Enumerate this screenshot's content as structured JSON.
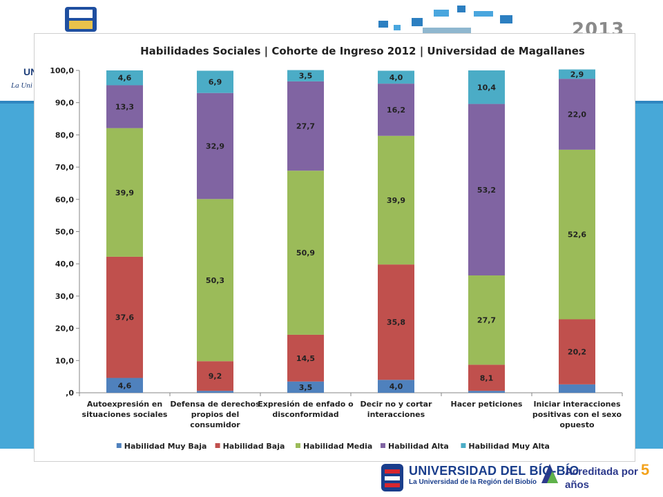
{
  "slide": {
    "year": "2013",
    "header_university": "UNI",
    "header_university_sub": "La Uni",
    "footer_university": "UNIVERSIDAD DEL BÍO-BÍO",
    "footer_university_sub": "La Universidad de la Región del Biobío",
    "footer_accreditation": "Acreditada por",
    "footer_accreditation_years": "5",
    "footer_accreditation_unit": "años",
    "colors": {
      "blue_band": "#47a8d8",
      "frame_border": "#cfcfcf"
    }
  },
  "chart_data": {
    "type": "bar",
    "stacked": true,
    "title": "Habilidades Sociales | Cohorte de Ingreso 2012 | Universidad de Magallanes",
    "xlabel": "",
    "ylabel": "",
    "ylim": [
      0,
      100
    ],
    "y_ticks": [
      0,
      10,
      20,
      30,
      40,
      50,
      60,
      70,
      80,
      90,
      100
    ],
    "y_tick_labels": [
      ",0",
      "10,0",
      "20,0",
      "30,0",
      "40,0",
      "50,0",
      "60,0",
      "70,0",
      "80,0",
      "90,0",
      "100,0"
    ],
    "grid": false,
    "legend_position": "bottom",
    "categories": [
      [
        "Autoexpresión en",
        "situaciones sociales"
      ],
      [
        "Defensa de derechos",
        "propios del",
        "consumidor"
      ],
      [
        "Expresión de enfado o",
        "disconformidad"
      ],
      [
        "Decir no y cortar",
        "interacciones"
      ],
      [
        "Hacer peticiones"
      ],
      [
        "Iniciar interacciones",
        "positivas con el sexo",
        "opuesto"
      ]
    ],
    "series": [
      {
        "name": "Habilidad Muy Baja",
        "color": "#4f81bd",
        "values": [
          4.6,
          0.6,
          3.5,
          4.0,
          0.6,
          2.6
        ],
        "labels": [
          "4,6",
          "",
          "3,5",
          "4,0",
          "",
          ""
        ]
      },
      {
        "name": "Habilidad Baja",
        "color": "#c0504d",
        "values": [
          37.6,
          9.2,
          14.5,
          35.8,
          8.1,
          20.2
        ],
        "labels": [
          "37,6",
          "9,2",
          "14,5",
          "35,8",
          "8,1",
          "20,2"
        ]
      },
      {
        "name": "Habilidad Media",
        "color": "#9bbb59",
        "values": [
          39.9,
          50.3,
          50.9,
          39.9,
          27.7,
          52.6
        ],
        "labels": [
          "39,9",
          "50,3",
          "50,9",
          "39,9",
          "27,7",
          "52,6"
        ]
      },
      {
        "name": "Habilidad Alta",
        "color": "#8064a2",
        "values": [
          13.3,
          32.9,
          27.7,
          16.2,
          53.2,
          22.0
        ],
        "labels": [
          "13,3",
          "32,9",
          "27,7",
          "16,2",
          "53,2",
          "22,0"
        ]
      },
      {
        "name": "Habilidad Muy Alta",
        "color": "#4bacc6",
        "values": [
          4.6,
          6.9,
          3.5,
          4.0,
          10.4,
          2.9
        ],
        "labels": [
          "4,6",
          "6,9",
          "3,5",
          "4,0",
          "10,4",
          "2,9"
        ]
      }
    ]
  }
}
